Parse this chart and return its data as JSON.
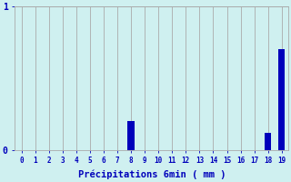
{
  "x_labels": [
    "0",
    "1",
    "2",
    "3",
    "4",
    "5",
    "6",
    "7",
    "8",
    "9",
    "10",
    "11",
    "12",
    "13",
    "14",
    "15",
    "16",
    "17",
    "18",
    "19"
  ],
  "values": [
    0,
    0,
    0,
    0,
    0,
    0,
    0,
    0,
    0.2,
    0,
    0,
    0,
    0,
    0,
    0,
    0,
    0,
    0,
    0.12,
    0.7
  ],
  "bar_color": "#0000bb",
  "background_color": "#cff0f0",
  "grid_color": "#aaaaaa",
  "xlabel": "Précipitations 6min ( mm )",
  "xlabel_color": "#0000bb",
  "tick_color": "#0000bb",
  "ylim": [
    0,
    1.0
  ],
  "xlim": [
    -0.5,
    19.5
  ],
  "ytick_values": [
    0,
    1
  ],
  "ytick_labels": [
    "0",
    "1"
  ]
}
